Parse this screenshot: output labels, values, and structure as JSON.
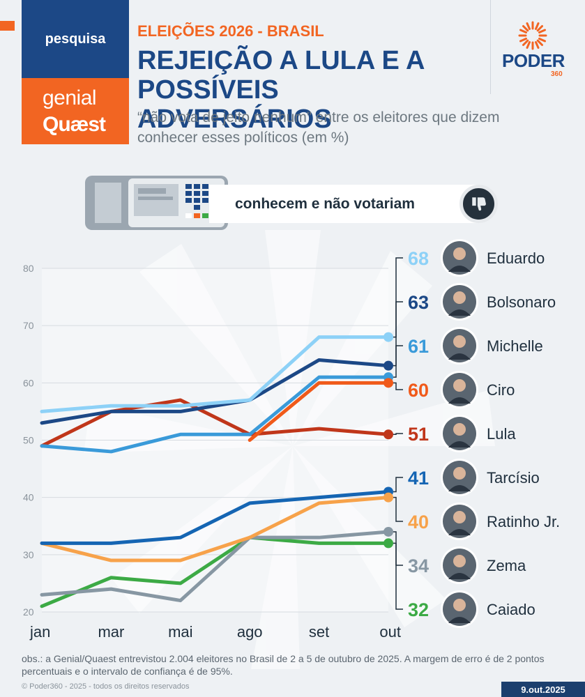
{
  "header": {
    "tag": "pesquisa",
    "sponsor_line1": "genial",
    "sponsor_line2": "Quæst",
    "kicker": "ELEIÇÕES 2026 - BRASIL",
    "title": "REJEIÇÃO A LULA E A POSSÍVEIS ADVERSÁRIOS",
    "subtitle": "“não vota de jeito nenhum” entre os eleitores que dizem conhecer esses políticos (em %)",
    "logo_main": "PODER",
    "logo_sub": "360"
  },
  "banner": {
    "label": "conhecem e não votariam",
    "icon": "thumbs-down-icon",
    "left_icon": "voting-machine-icon"
  },
  "chart_data": {
    "type": "line",
    "categories": [
      "jan",
      "mar",
      "mai",
      "ago",
      "set",
      "out"
    ],
    "ylim": [
      20,
      80
    ],
    "yticks": [
      "20",
      "30",
      "40",
      "50",
      "60",
      "70",
      "80"
    ],
    "grid": true,
    "series": [
      {
        "name": "Eduardo",
        "label": "68",
        "color": "#8dd1f7",
        "values": [
          55,
          56,
          56,
          57,
          68,
          68
        ]
      },
      {
        "name": "Bolsonaro",
        "label": "63",
        "color": "#1c4886",
        "values": [
          53,
          55,
          55,
          57,
          64,
          63
        ]
      },
      {
        "name": "Michelle",
        "label": "61",
        "color": "#3a9ad9",
        "values": [
          49,
          48,
          51,
          51,
          61,
          61
        ]
      },
      {
        "name": "Ciro",
        "label": "60",
        "color": "#f05a1a",
        "values": [
          null,
          null,
          null,
          50,
          60,
          60
        ]
      },
      {
        "name": "Lula",
        "label": "51",
        "color": "#c0361a",
        "values": [
          49,
          55,
          57,
          51,
          52,
          51
        ]
      },
      {
        "name": "Tarcísio",
        "label": "41",
        "color": "#1565b3",
        "values": [
          32,
          32,
          33,
          39,
          40,
          41
        ]
      },
      {
        "name": "Ratinho Jr.",
        "label": "40",
        "color": "#f7a24a",
        "values": [
          32,
          29,
          29,
          33,
          39,
          40
        ]
      },
      {
        "name": "Zema",
        "label": "34",
        "color": "#8797a3",
        "values": [
          23,
          24,
          22,
          33,
          33,
          34
        ]
      },
      {
        "name": "Caiado",
        "label": "32",
        "color": "#3caa45",
        "values": [
          21,
          26,
          25,
          33,
          32,
          32
        ]
      }
    ]
  },
  "footer": {
    "obs": "obs.: a Genial/Quaest entrevistou 2.004 eleitores no Brasil de 2 a 5 de outubro de 2025. A margem de erro é de 2 pontos percentuais e o intervalo de confiança é de 95%.",
    "copyright": "© Poder360 - 2025 - todos os direitos reservados",
    "date": "9.out.2025"
  }
}
